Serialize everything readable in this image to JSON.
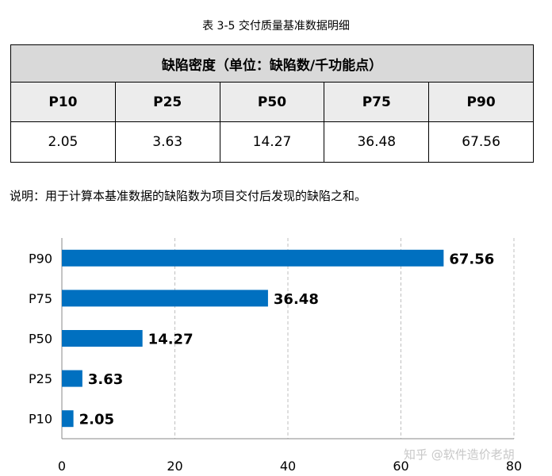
{
  "caption": "表 3-5  交付质量基准数据明细",
  "table": {
    "header": "缺陷密度（单位：缺陷数/千功能点）",
    "columns": [
      "P10",
      "P25",
      "P50",
      "P75",
      "P90"
    ],
    "values": [
      "2.05",
      "3.63",
      "14.27",
      "36.48",
      "67.56"
    ]
  },
  "note": "说明：用于计算本基准数据的缺陷数为项目交付后发现的缺陷之和。",
  "watermark": "知乎 @软件造价老胡",
  "chart_data": {
    "type": "bar",
    "orientation": "horizontal",
    "categories": [
      "P10",
      "P25",
      "P50",
      "P75",
      "P90"
    ],
    "values": [
      2.05,
      3.63,
      14.27,
      36.48,
      67.56
    ],
    "value_labels": [
      "2.05",
      "3.63",
      "14.27",
      "36.48",
      "67.56"
    ],
    "xlim": [
      0,
      80
    ],
    "xticks": [
      0,
      20,
      40,
      60,
      80
    ],
    "grid": "vertical-dashed",
    "bar_color": "#0070c0"
  }
}
